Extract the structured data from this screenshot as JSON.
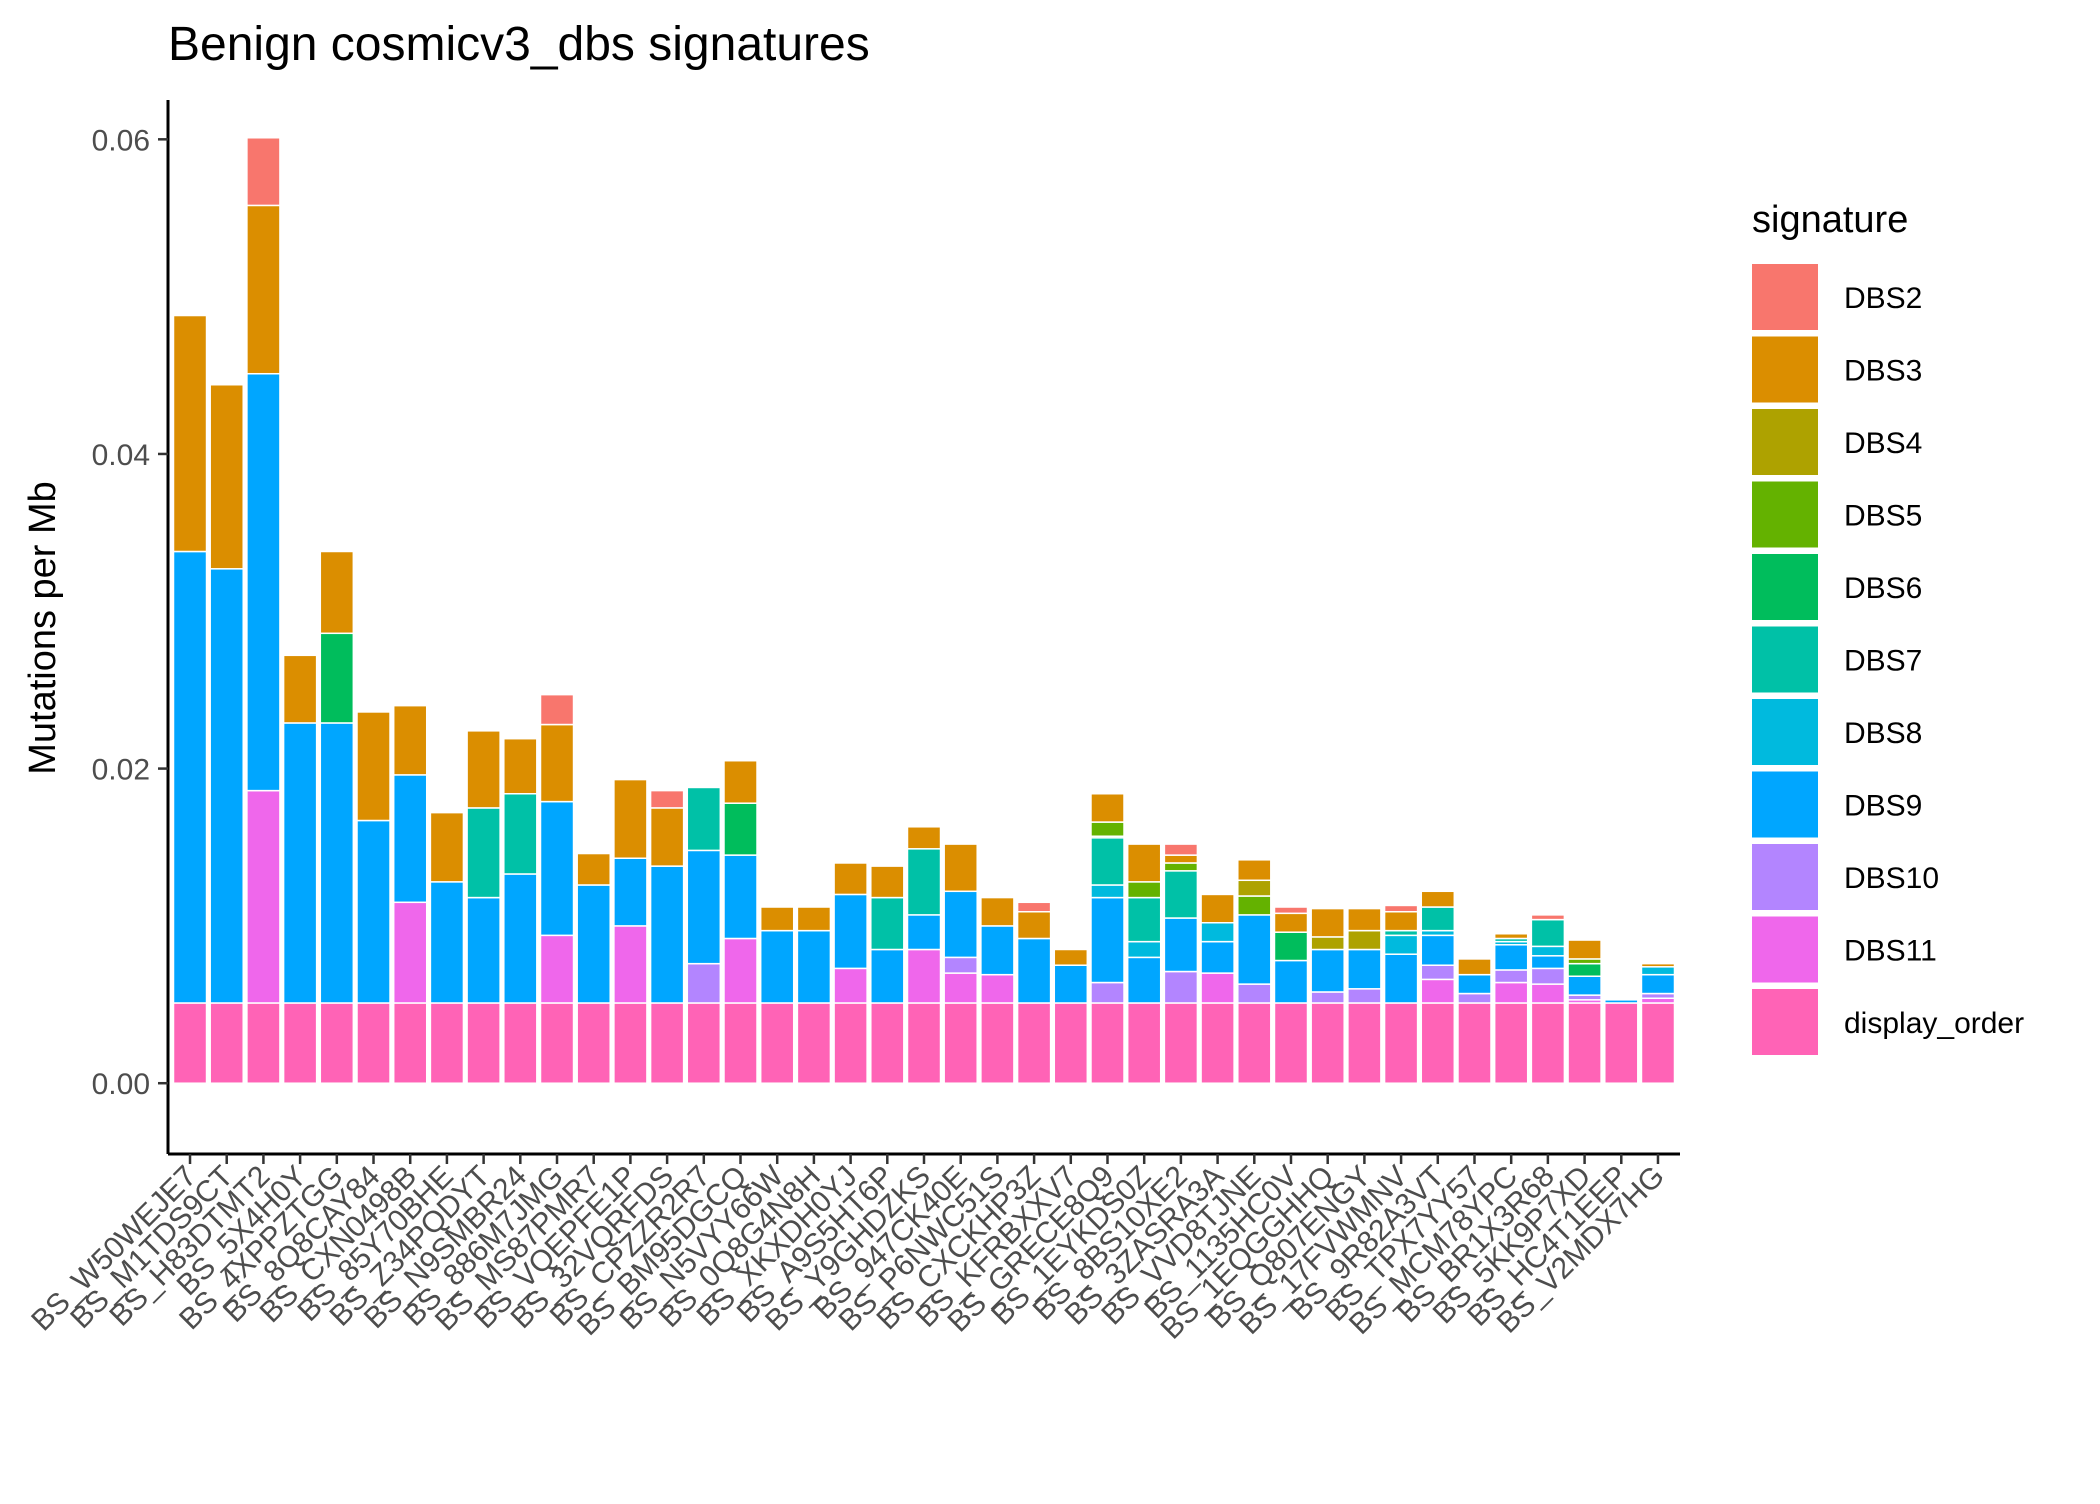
{
  "chart_data": {
    "type": "bar",
    "stacked": true,
    "title": "Benign cosmicv3_dbs signatures",
    "xlabel": "",
    "ylabel": "Mutations per Mb",
    "ylim": [
      -0.0045,
      0.0625
    ],
    "yticks": [
      0,
      0.02,
      0.04,
      0.06
    ],
    "ytick_labels": [
      "0.00",
      "0.02",
      "0.04",
      "0.06"
    ],
    "grid": false,
    "legend": {
      "title": "signature",
      "position": "right"
    },
    "categories": [
      "BS_W50WEJE7",
      "BS_M1TDS9CT",
      "BS_H83DTMT2",
      "BS_5X4H0Y",
      "BS_4XPPZTGG",
      "BS_8Q8CAY84",
      "BS_CXN0498B",
      "BS_85Y70BHE",
      "BS_Z34PQDYT",
      "BS_N9SMBR24",
      "BS_886M7JMG",
      "BS_MS87PMR7",
      "BS_VQEPFE1P",
      "BS_32VQRFDS",
      "BS_CPZZR2R7",
      "BS_BM95DGCQ",
      "BS_N5VYY66W",
      "BS_0Q8G4N8H",
      "BS_XKXDH0YJ",
      "BS_A9S5HT6P",
      "BS_Y9GHDZKS",
      "BS_947CK40E",
      "BS_P6NWC51S",
      "BS_CXCKHP3Z",
      "BS_KFRBXXV7",
      "BS_GRECE8Q9",
      "BS_1EYKDS0Z",
      "BS_8BS10XE2",
      "BS_3ZASRA3A",
      "BS_VVD8TJNE",
      "BS_1135HC0V",
      "BS_1EQGGHHQ",
      "BS_Q807ENGY",
      "BS_17FVWMNV",
      "BS_9R82A3VT",
      "BS_TPX7YY57",
      "BS_MCM78YPC",
      "BS_BR1X3R68",
      "BS_5KK9P7XD",
      "BS_HC4T1EEP",
      "BS_V2MDX7HG"
    ],
    "series": [
      {
        "name": "DBS2",
        "color": "#F8766D",
        "values": [
          0,
          0,
          0.0043,
          0,
          0,
          0,
          0,
          0,
          0,
          0,
          0.0019,
          0,
          0,
          0.0011,
          0,
          0,
          0,
          0,
          0,
          0,
          0,
          0,
          0,
          0.0006,
          0,
          0,
          0,
          0.0007,
          0,
          0,
          0.0004,
          0,
          0,
          0.0004,
          0,
          0,
          0,
          0.0003,
          0,
          0,
          0
        ]
      },
      {
        "name": "DBS3",
        "color": "#DB8E00",
        "values": [
          0.015,
          0.0117,
          0.0107,
          0.0043,
          0.0052,
          0.0069,
          0.0044,
          0.0044,
          0.0049,
          0.0035,
          0.0049,
          0.002,
          0.005,
          0.0037,
          0,
          0.0027,
          0.0015,
          0.0015,
          0.002,
          0.002,
          0.0014,
          0.003,
          0.0018,
          0.0017,
          0.001,
          0.0018,
          0.0024,
          0.0005,
          0.0018,
          0.0013,
          0.0012,
          0.0018,
          0.0014,
          0.0012,
          0.001,
          0.001,
          0.0003,
          0,
          0.0012,
          0,
          0.0002
        ]
      },
      {
        "name": "DBS4",
        "color": "#AEA200",
        "values": [
          0,
          0,
          0,
          0,
          0,
          0,
          0,
          0,
          0,
          0,
          0,
          0,
          0,
          0,
          0,
          0,
          0,
          0,
          0,
          0,
          0,
          0,
          0,
          0,
          0,
          0,
          0,
          0,
          0,
          0.001,
          0,
          0.0008,
          0.0012,
          0,
          0,
          0,
          0,
          0,
          0,
          0,
          0
        ]
      },
      {
        "name": "DBS5",
        "color": "#64B200",
        "values": [
          0,
          0,
          0,
          0,
          0,
          0,
          0,
          0,
          0,
          0,
          0,
          0,
          0,
          0,
          0,
          0,
          0,
          0,
          0,
          0,
          0,
          0,
          0,
          0,
          0,
          0.0009,
          0.001,
          0.0005,
          0,
          0.0012,
          0,
          0,
          0,
          0,
          0,
          0,
          0,
          0,
          0.0003,
          0,
          0
        ]
      },
      {
        "name": "DBS6",
        "color": "#00BD5C",
        "values": [
          0,
          0,
          0,
          0,
          0.0057,
          0,
          0,
          0,
          0,
          0,
          0,
          0,
          0,
          0,
          0,
          0.0033,
          0,
          0,
          0,
          0,
          0,
          0,
          0,
          0,
          0,
          0.0001,
          0,
          0,
          0,
          0,
          0.0018,
          0,
          0,
          0,
          0,
          0,
          0,
          0,
          0.0008,
          0,
          0
        ]
      },
      {
        "name": "DBS7",
        "color": "#00C1A7",
        "values": [
          0,
          0,
          0,
          0,
          0,
          0,
          0,
          0,
          0.0057,
          0.0051,
          0,
          0,
          0,
          0,
          0.004,
          0,
          0,
          0,
          0,
          0.0033,
          0.0042,
          0,
          0,
          0,
          0,
          0.003,
          0.0028,
          0.003,
          0,
          0,
          0,
          0,
          0,
          0.0003,
          0.0015,
          0,
          0.0002,
          0.0017,
          0,
          0,
          0
        ]
      },
      {
        "name": "DBS8",
        "color": "#00BADE",
        "values": [
          0,
          0,
          0,
          0,
          0,
          0,
          0,
          0,
          0,
          0,
          0,
          0,
          0,
          0,
          0,
          0,
          0,
          0,
          0,
          0,
          0,
          0,
          0,
          0,
          0,
          0.0008,
          0.001,
          0,
          0.0012,
          0,
          0,
          0,
          0,
          0.0012,
          0.0003,
          0,
          0.0002,
          0.0006,
          0,
          0,
          0.0005
        ]
      },
      {
        "name": "DBS9",
        "color": "#00A6FF",
        "values": [
          0.0287,
          0.0276,
          0.0265,
          0.0178,
          0.0178,
          0.0116,
          0.0081,
          0.0077,
          0.0067,
          0.0082,
          0.0085,
          0.0075,
          0.0043,
          0.0087,
          0.0072,
          0.0053,
          0.0046,
          0.0046,
          0.0047,
          0.0034,
          0.0022,
          0.0042,
          0.0031,
          0.0041,
          0.0024,
          0.0054,
          0.0029,
          0.0034,
          0.002,
          0.0044,
          0.0027,
          0.0027,
          0.0025,
          0.0031,
          0.0019,
          0.0012,
          0.0016,
          0.0008,
          0.0012,
          0.0002,
          0.0012
        ]
      },
      {
        "name": "DBS10",
        "color": "#B385FF",
        "values": [
          0,
          0,
          0,
          0,
          0,
          0,
          0,
          0,
          0,
          0,
          0,
          0,
          0,
          0,
          0.0025,
          0,
          0,
          0,
          0,
          0,
          0,
          0.001,
          0,
          0,
          0,
          0.0013,
          0,
          0.002,
          0,
          0.0012,
          0,
          0.0007,
          0.0009,
          0,
          0.0009,
          0.0006,
          0.0008,
          0.001,
          0.0003,
          0,
          0.0003
        ]
      },
      {
        "name": "DBS11",
        "color": "#EF67EB",
        "values": [
          0,
          0,
          0.0135,
          0,
          0,
          0,
          0.0064,
          0,
          0,
          0,
          0.0043,
          0,
          0.0049,
          0,
          0,
          0.0041,
          0,
          0,
          0.0022,
          0,
          0.0034,
          0.0019,
          0.0018,
          0,
          0,
          0,
          0,
          0,
          0.0019,
          0,
          0,
          0,
          0,
          0,
          0.0015,
          0,
          0.0013,
          0.0012,
          0.0002,
          0,
          0.0003
        ]
      },
      {
        "name": "display_order",
        "color": "#FF63B6",
        "values": [
          0.0051,
          0.0051,
          0.0051,
          0.0051,
          0.0051,
          0.0051,
          0.0051,
          0.0051,
          0.0051,
          0.0051,
          0.0051,
          0.0051,
          0.0051,
          0.0051,
          0.0051,
          0.0051,
          0.0051,
          0.0051,
          0.0051,
          0.0051,
          0.0051,
          0.0051,
          0.0051,
          0.0051,
          0.0051,
          0.0051,
          0.0051,
          0.0051,
          0.0051,
          0.0051,
          0.0051,
          0.0051,
          0.0051,
          0.0051,
          0.0051,
          0.0051,
          0.0051,
          0.0051,
          0.0051,
          0.0051,
          0.0051
        ]
      }
    ]
  }
}
